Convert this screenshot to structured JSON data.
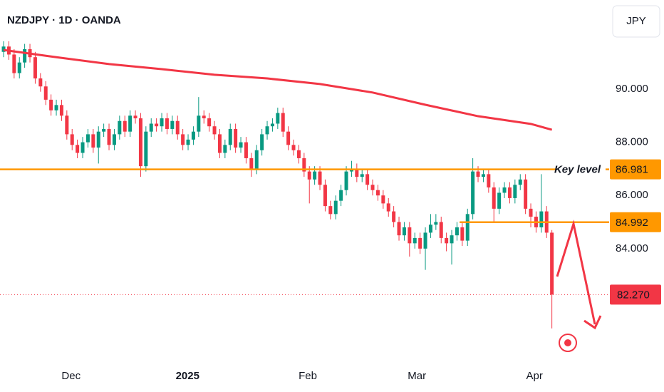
{
  "header": {
    "title": "NZDJPY · 1D · OANDA",
    "currency_button": "JPY"
  },
  "chart_data": {
    "type": "candlestick",
    "up_color": "#089981",
    "down_color": "#f23645",
    "open": [
      91.4,
      91.6,
      91.3,
      90.6,
      91.0,
      91.5,
      91.2,
      90.4,
      90.1,
      89.6,
      89.2,
      89.4,
      89.0,
      88.3,
      87.9,
      87.6,
      88.0,
      88.3,
      87.8,
      88.4,
      88.5,
      87.9,
      88.3,
      88.8,
      88.4,
      89.0,
      88.9,
      87.1,
      88.4,
      88.7,
      88.6,
      88.9,
      88.5,
      88.8,
      88.3,
      87.9,
      88.1,
      88.4,
      89.0,
      88.9,
      88.6,
      88.3,
      87.6,
      87.9,
      88.5,
      87.8,
      88.0,
      87.4,
      87.0,
      87.7,
      88.3,
      88.6,
      88.7,
      89.1,
      88.4,
      87.9,
      87.7,
      87.4,
      86.9,
      86.6,
      86.9,
      86.4,
      85.6,
      85.3,
      85.8,
      86.2,
      86.9,
      87.0,
      86.7,
      86.8,
      86.4,
      86.2,
      86.0,
      85.7,
      85.4,
      85.0,
      84.5,
      84.8,
      84.2,
      84.4,
      84.0,
      84.6,
      84.9,
      85.0,
      84.4,
      84.2,
      84.5,
      84.8,
      84.3,
      85.3,
      86.9,
      86.7,
      86.8,
      86.3,
      85.5,
      86.1,
      86.3,
      85.9,
      86.4,
      86.6,
      85.5,
      85.2,
      84.8,
      85.4,
      84.6
    ],
    "high": [
      91.8,
      91.8,
      91.5,
      91.2,
      91.7,
      91.7,
      91.4,
      90.6,
      90.3,
      89.8,
      89.6,
      89.6,
      89.2,
      88.5,
      88.1,
      88.2,
      88.5,
      88.5,
      88.6,
      88.7,
      88.7,
      88.5,
      89.0,
      89.0,
      89.2,
      89.2,
      89.1,
      88.6,
      88.9,
      88.9,
      89.1,
      89.1,
      89.0,
      89.0,
      88.5,
      88.3,
      88.6,
      89.7,
      89.2,
      89.1,
      88.8,
      88.5,
      88.1,
      88.7,
      88.7,
      88.2,
      88.2,
      87.6,
      87.9,
      88.5,
      88.8,
      88.9,
      89.3,
      89.3,
      88.6,
      88.1,
      87.9,
      87.6,
      87.1,
      87.1,
      87.1,
      86.6,
      85.8,
      86.0,
      86.4,
      87.1,
      87.3,
      87.2,
      87.0,
      87.0,
      86.6,
      86.4,
      86.2,
      85.9,
      85.6,
      85.2,
      85.0,
      85.0,
      84.6,
      84.6,
      84.8,
      85.3,
      85.3,
      85.2,
      84.6,
      84.7,
      85.0,
      85.0,
      85.5,
      87.4,
      87.1,
      87.0,
      87.0,
      86.5,
      86.3,
      86.5,
      86.5,
      86.6,
      86.8,
      86.8,
      85.7,
      85.4,
      86.8,
      85.6,
      84.7
    ],
    "low": [
      91.2,
      91.1,
      90.4,
      90.4,
      90.8,
      91.0,
      90.2,
      89.9,
      89.4,
      89.0,
      89.0,
      88.8,
      88.1,
      87.7,
      87.4,
      87.4,
      87.8,
      87.6,
      87.2,
      88.2,
      87.7,
      87.7,
      88.1,
      88.2,
      88.2,
      88.7,
      86.7,
      86.9,
      88.2,
      88.4,
      88.4,
      88.3,
      88.3,
      88.1,
      87.7,
      87.7,
      87.9,
      88.2,
      88.7,
      88.4,
      88.1,
      87.4,
      87.4,
      87.7,
      87.6,
      87.6,
      87.2,
      86.7,
      86.8,
      87.5,
      88.1,
      88.4,
      88.5,
      88.2,
      87.7,
      87.5,
      87.2,
      86.7,
      85.7,
      86.4,
      86.2,
      85.4,
      85.1,
      85.1,
      85.6,
      86.0,
      86.7,
      86.5,
      86.5,
      86.2,
      86.0,
      85.8,
      85.5,
      85.2,
      84.8,
      84.3,
      84.3,
      83.7,
      84.0,
      83.8,
      83.2,
      84.4,
      84.7,
      84.2,
      83.9,
      83.4,
      84.3,
      84.1,
      84.1,
      85.1,
      86.5,
      86.5,
      86.1,
      85.0,
      85.3,
      85.9,
      85.7,
      85.7,
      86.2,
      85.3,
      84.8,
      84.6,
      84.6,
      84.4,
      81.0
    ],
    "close": [
      91.6,
      91.3,
      90.6,
      91.0,
      91.5,
      91.2,
      90.4,
      90.1,
      89.6,
      89.2,
      89.4,
      89.0,
      88.3,
      87.9,
      87.6,
      88.0,
      88.3,
      87.8,
      88.4,
      88.5,
      87.9,
      88.3,
      88.8,
      88.4,
      89.0,
      88.9,
      87.1,
      88.4,
      88.7,
      88.6,
      88.9,
      88.5,
      88.8,
      88.3,
      87.9,
      88.1,
      88.4,
      89.0,
      88.9,
      88.6,
      88.3,
      87.6,
      87.9,
      88.5,
      87.8,
      88.0,
      87.4,
      87.0,
      87.7,
      88.3,
      88.6,
      88.7,
      89.1,
      88.4,
      87.9,
      87.7,
      87.4,
      86.9,
      86.6,
      86.9,
      86.4,
      85.6,
      85.3,
      85.8,
      86.2,
      86.9,
      87.0,
      86.7,
      86.8,
      86.4,
      86.2,
      86.0,
      85.7,
      85.4,
      85.0,
      84.5,
      84.8,
      84.2,
      84.4,
      84.0,
      84.6,
      84.9,
      85.0,
      84.4,
      84.2,
      84.5,
      84.8,
      84.3,
      85.3,
      86.9,
      86.7,
      86.8,
      86.3,
      85.5,
      86.1,
      86.3,
      85.9,
      86.4,
      86.6,
      85.5,
      85.2,
      84.8,
      85.4,
      84.6,
      82.27
    ],
    "moving_average": {
      "color": "#f23645",
      "x": [
        0,
        10,
        20,
        30,
        40,
        50,
        60,
        70,
        80,
        90,
        100,
        104
      ],
      "values": [
        91.47,
        91.2,
        90.94,
        90.75,
        90.54,
        90.4,
        90.19,
        89.87,
        89.41,
        88.98,
        88.69,
        88.47
      ]
    },
    "levels": [
      {
        "value": 86.981,
        "color": "#ff9800",
        "annotation": "Key level"
      },
      {
        "value": 84.992,
        "color": "#ff9800",
        "from": 86.5
      }
    ],
    "last_price": {
      "value": 82.27,
      "value_label": "82.270",
      "color": "#f23645"
    },
    "xlim": [
      -0.68,
      114.86
    ],
    "ylim": [
      79.76,
      93.35
    ],
    "yticks": [
      {
        "value": 84,
        "label": "84.000"
      },
      {
        "value": 86,
        "label": "86.000"
      },
      {
        "value": 88,
        "label": "88.000"
      },
      {
        "value": 90,
        "label": "90.000"
      }
    ],
    "xticks": [
      {
        "value": 12.8,
        "label": "Dec"
      },
      {
        "value": 34.9,
        "label": "2025"
      },
      {
        "value": 57.7,
        "label": "Feb"
      },
      {
        "value": 78.4,
        "label": "Mar"
      },
      {
        "value": 100.7,
        "label": "Apr"
      }
    ]
  }
}
